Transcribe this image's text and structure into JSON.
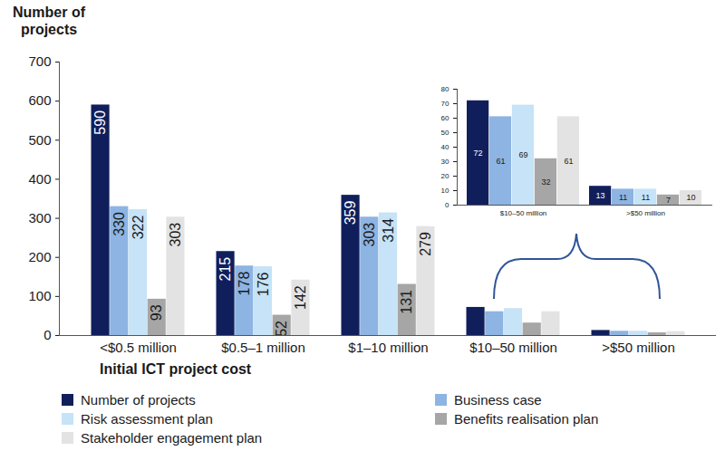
{
  "chart_data": [
    {
      "type": "bar",
      "ylabel": "Number of projects",
      "xlabel": "Initial ICT project cost",
      "categories": [
        "<$0.5 million",
        "$0.5–1 million",
        "$1–10 million",
        "$10–50 million",
        ">$50 million"
      ],
      "series": [
        {
          "name": "Number of projects",
          "color": "#101f5c",
          "values": [
            590,
            215,
            359,
            72,
            13
          ],
          "value_labels": [
            "590",
            "215",
            "359",
            null,
            null
          ]
        },
        {
          "name": "Business case",
          "color": "#8db4e2",
          "values": [
            330,
            178,
            303,
            61,
            11
          ],
          "value_labels": [
            "330",
            "178",
            "303",
            null,
            null
          ]
        },
        {
          "name": "Risk assessment plan",
          "color": "#c6e3f7",
          "values": [
            322,
            176,
            314,
            69,
            11
          ],
          "value_labels": [
            "322",
            "176",
            "314",
            null,
            null
          ]
        },
        {
          "name": "Benefits realisation plan",
          "color": "#a6a6a6",
          "values": [
            93,
            52,
            131,
            32,
            7
          ],
          "value_labels": [
            "93",
            "52",
            "131",
            null,
            null
          ]
        },
        {
          "name": "Stakeholder engagement plan",
          "color": "#e3e3e3",
          "values": [
            303,
            142,
            279,
            61,
            10
          ],
          "value_labels": [
            "303",
            "142",
            "279",
            null,
            null
          ]
        }
      ],
      "ylim": [
        0,
        700
      ],
      "yticks": [
        0,
        100,
        200,
        300,
        400,
        500,
        600,
        700
      ],
      "data_labels": true,
      "legend": "bottom"
    },
    {
      "type": "bar",
      "categories": [
        "$10–50 million",
        ">$50 million"
      ],
      "series": [
        {
          "name": "Number of projects",
          "color": "#101f5c",
          "values": [
            72,
            13
          ]
        },
        {
          "name": "Business case",
          "color": "#8db4e2",
          "values": [
            61,
            11
          ]
        },
        {
          "name": "Risk assessment plan",
          "color": "#c6e3f7",
          "values": [
            69,
            11
          ]
        },
        {
          "name": "Benefits realisation plan",
          "color": "#a6a6a6",
          "values": [
            32,
            7
          ]
        },
        {
          "name": "Stakeholder engagement plan",
          "color": "#e3e3e3",
          "values": [
            61,
            10
          ]
        }
      ],
      "ylim": [
        0,
        80
      ],
      "yticks": [
        0,
        10,
        20,
        30,
        40,
        50,
        60,
        70,
        80
      ],
      "data_labels": true,
      "legend": "none"
    }
  ]
}
